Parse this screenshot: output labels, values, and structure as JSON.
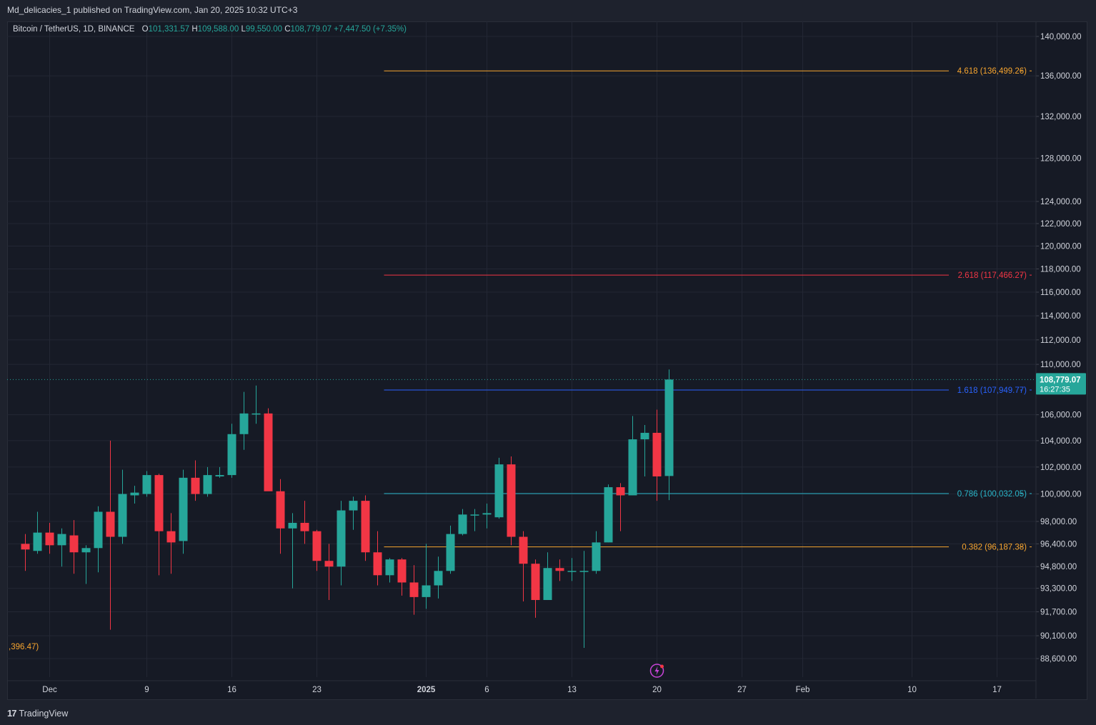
{
  "header": {
    "publish_line": "Md_delicacies_1 published on TradingView.com, Jan 20, 2025 10:32 UTC+3"
  },
  "legend": {
    "symbol": "Bitcoin / TetherUS, 1D, BINANCE",
    "open_key": "O",
    "open": "101,331.57",
    "high_key": "H",
    "high": "109,588.00",
    "low_key": "L",
    "low": "99,550.00",
    "close_key": "C",
    "close": "108,779.07",
    "change": "+7,447.50 (+7.35%)"
  },
  "footer": {
    "brand": "TradingView",
    "logo": "17"
  },
  "colors": {
    "up": "#26a69a",
    "down": "#f23645",
    "bg": "#161a25",
    "grid": "#232734",
    "fib_4618": "#f7a52f",
    "fib_2618": "#f23645",
    "fib_1618": "#2962ff",
    "fib_0786": "#2ab7ca",
    "fib_0382": "#f7a52f"
  },
  "icons": {
    "lightning": "lightning-bolt-icon"
  },
  "chart_data": {
    "type": "candlestick",
    "y_scale": "log",
    "ylim": [
      87500,
      142000
    ],
    "x_ticks": [
      {
        "label": "Dec",
        "day": 0
      },
      {
        "label": "9",
        "day": 8
      },
      {
        "label": "16",
        "day": 15
      },
      {
        "label": "23",
        "day": 22
      },
      {
        "label": "2025",
        "day": 31
      },
      {
        "label": "6",
        "day": 36
      },
      {
        "label": "13",
        "day": 43
      },
      {
        "label": "20",
        "day": 50
      },
      {
        "label": "27",
        "day": 57
      },
      {
        "label": "Feb",
        "day": 62
      },
      {
        "label": "10",
        "day": 71
      },
      {
        "label": "17",
        "day": 78
      }
    ],
    "y_ticks": [
      "140,000.00",
      "136,000.00",
      "132,000.00",
      "128,000.00",
      "124,000.00",
      "122,000.00",
      "120,000.00",
      "118,000.00",
      "116,000.00",
      "114,000.00",
      "112,000.00",
      "110,000.00",
      "106,000.00",
      "104,000.00",
      "102,000.00",
      "100,000.00",
      "98,000.00",
      "96,400.00",
      "94,800.00",
      "93,300.00",
      "91,700.00",
      "90,100.00",
      "88,600.00"
    ],
    "last_price": {
      "label": "108,779.07",
      "timer": "16:27:35",
      "value": 108779.07
    },
    "candles": [
      {
        "day": -2,
        "o": 96400,
        "h": 97100,
        "l": 94500,
        "c": 96000
      },
      {
        "day": -1,
        "o": 95900,
        "h": 98700,
        "l": 95700,
        "c": 97200
      },
      {
        "day": 0,
        "o": 97200,
        "h": 97900,
        "l": 95700,
        "c": 96300
      },
      {
        "day": 1,
        "o": 96300,
        "h": 97500,
        "l": 94800,
        "c": 97100
      },
      {
        "day": 2,
        "o": 97000,
        "h": 98100,
        "l": 94300,
        "c": 95800
      },
      {
        "day": 3,
        "o": 95800,
        "h": 96300,
        "l": 93600,
        "c": 96100
      },
      {
        "day": 4,
        "o": 96100,
        "h": 99100,
        "l": 94400,
        "c": 98700
      },
      {
        "day": 5,
        "o": 98700,
        "h": 104000,
        "l": 90500,
        "c": 96900
      },
      {
        "day": 6,
        "o": 96900,
        "h": 101800,
        "l": 96400,
        "c": 100000
      },
      {
        "day": 7,
        "o": 99900,
        "h": 100600,
        "l": 99300,
        "c": 100100
      },
      {
        "day": 8,
        "o": 100000,
        "h": 101700,
        "l": 99800,
        "c": 101400
      },
      {
        "day": 9,
        "o": 101400,
        "h": 101500,
        "l": 94200,
        "c": 97300
      },
      {
        "day": 10,
        "o": 97300,
        "h": 98600,
        "l": 94300,
        "c": 96500
      },
      {
        "day": 11,
        "o": 96600,
        "h": 101800,
        "l": 95700,
        "c": 101200
      },
      {
        "day": 12,
        "o": 101200,
        "h": 102500,
        "l": 99500,
        "c": 100000
      },
      {
        "day": 13,
        "o": 100000,
        "h": 102000,
        "l": 99800,
        "c": 101400
      },
      {
        "day": 14,
        "o": 101300,
        "h": 102000,
        "l": 101200,
        "c": 101400
      },
      {
        "day": 15,
        "o": 101400,
        "h": 105300,
        "l": 101200,
        "c": 104500
      },
      {
        "day": 16,
        "o": 104500,
        "h": 107800,
        "l": 103300,
        "c": 106100
      },
      {
        "day": 17,
        "o": 106100,
        "h": 108300,
        "l": 105300,
        "c": 106100
      },
      {
        "day": 18,
        "o": 106100,
        "h": 106500,
        "l": 100300,
        "c": 100200
      },
      {
        "day": 19,
        "o": 100200,
        "h": 101100,
        "l": 95700,
        "c": 97500
      },
      {
        "day": 20,
        "o": 97500,
        "h": 98600,
        "l": 93300,
        "c": 97900
      },
      {
        "day": 21,
        "o": 97900,
        "h": 99500,
        "l": 96400,
        "c": 97300
      },
      {
        "day": 22,
        "o": 97300,
        "h": 97400,
        "l": 94500,
        "c": 95200
      },
      {
        "day": 23,
        "o": 95200,
        "h": 96400,
        "l": 92500,
        "c": 94800
      },
      {
        "day": 24,
        "o": 94800,
        "h": 99500,
        "l": 93500,
        "c": 98800
      },
      {
        "day": 25,
        "o": 98800,
        "h": 99800,
        "l": 97400,
        "c": 99500
      },
      {
        "day": 26,
        "o": 99500,
        "h": 99900,
        "l": 95200,
        "c": 95800
      },
      {
        "day": 27,
        "o": 95800,
        "h": 97300,
        "l": 93500,
        "c": 94200
      },
      {
        "day": 28,
        "o": 94200,
        "h": 95400,
        "l": 93700,
        "c": 95300
      },
      {
        "day": 29,
        "o": 95300,
        "h": 95400,
        "l": 92800,
        "c": 93700
      },
      {
        "day": 30,
        "o": 93700,
        "h": 94900,
        "l": 91500,
        "c": 92700
      },
      {
        "day": 31,
        "o": 92700,
        "h": 96400,
        "l": 91900,
        "c": 93500
      },
      {
        "day": 32,
        "o": 93500,
        "h": 95500,
        "l": 92600,
        "c": 94500
      },
      {
        "day": 33,
        "o": 94500,
        "h": 97700,
        "l": 94300,
        "c": 97100
      },
      {
        "day": 34,
        "o": 97100,
        "h": 98900,
        "l": 97000,
        "c": 98500
      },
      {
        "day": 35,
        "o": 98500,
        "h": 98900,
        "l": 97300,
        "c": 98500
      },
      {
        "day": 36,
        "o": 98500,
        "h": 99300,
        "l": 97500,
        "c": 98600
      },
      {
        "day": 37,
        "o": 98300,
        "h": 102700,
        "l": 98200,
        "c": 102200
      },
      {
        "day": 38,
        "o": 102200,
        "h": 102800,
        "l": 96300,
        "c": 96900
      },
      {
        "day": 39,
        "o": 96900,
        "h": 97300,
        "l": 92400,
        "c": 95000
      },
      {
        "day": 40,
        "o": 95000,
        "h": 95300,
        "l": 91300,
        "c": 92500
      },
      {
        "day": 41,
        "o": 92500,
        "h": 95800,
        "l": 92500,
        "c": 94700
      },
      {
        "day": 42,
        "o": 94700,
        "h": 95300,
        "l": 93800,
        "c": 94500
      },
      {
        "day": 43,
        "o": 94500,
        "h": 95400,
        "l": 93800,
        "c": 94500
      },
      {
        "day": 44,
        "o": 94500,
        "h": 95900,
        "l": 89300,
        "c": 94500
      },
      {
        "day": 45,
        "o": 94500,
        "h": 97300,
        "l": 94300,
        "c": 96500
      },
      {
        "day": 46,
        "o": 96500,
        "h": 100700,
        "l": 96500,
        "c": 100500
      },
      {
        "day": 47,
        "o": 100500,
        "h": 100800,
        "l": 97300,
        "c": 99900
      },
      {
        "day": 48,
        "o": 99900,
        "h": 105900,
        "l": 99900,
        "c": 104100
      },
      {
        "day": 49,
        "o": 104100,
        "h": 105200,
        "l": 101300,
        "c": 104600
      },
      {
        "day": 50,
        "o": 104600,
        "h": 106400,
        "l": 99500,
        "c": 101300
      },
      {
        "day": 51,
        "o": 101331.57,
        "h": 109588,
        "l": 99550,
        "c": 108779.07
      }
    ],
    "fib_levels": [
      {
        "label": "4.618 (136,499.26)",
        "value": 136499.26,
        "color": "#f7a52f"
      },
      {
        "label": "2.618 (117,466.27)",
        "value": 117466.27,
        "color": "#f23645"
      },
      {
        "label": "1.618 (107,949.77)",
        "value": 107949.77,
        "color": "#2962ff"
      },
      {
        "label": "0.786 (100,032.05)",
        "value": 100032.05,
        "color": "#2ab7ca"
      },
      {
        "label": "0.382 (96,187.38)",
        "value": 96187.38,
        "color": "#f7a52f"
      }
    ],
    "fib_start_day": 28,
    "left_partial_label": ",396.47)"
  }
}
